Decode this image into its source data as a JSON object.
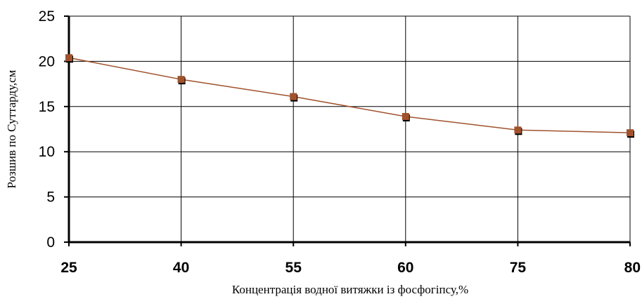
{
  "chart_data": {
    "type": "line",
    "title": "",
    "xlabel": "Концентрація водної витяжки із фосфогіпсу,%",
    "ylabel": "Розшив по Суттарду,см",
    "categories": [
      "25",
      "40",
      "55",
      "60",
      "75",
      "80"
    ],
    "series": [
      {
        "values": [
          20.4,
          18.0,
          16.1,
          13.9,
          12.4,
          12.1
        ]
      }
    ],
    "yticks": [
      "0",
      "5",
      "10",
      "15",
      "20",
      "25"
    ],
    "ylim": [
      0,
      25
    ],
    "grid": true,
    "legend": "none",
    "colors": {
      "line": "#a0522d",
      "marker": "#a0522d",
      "marker_shadow": "#000000",
      "grid": "#000000"
    }
  }
}
